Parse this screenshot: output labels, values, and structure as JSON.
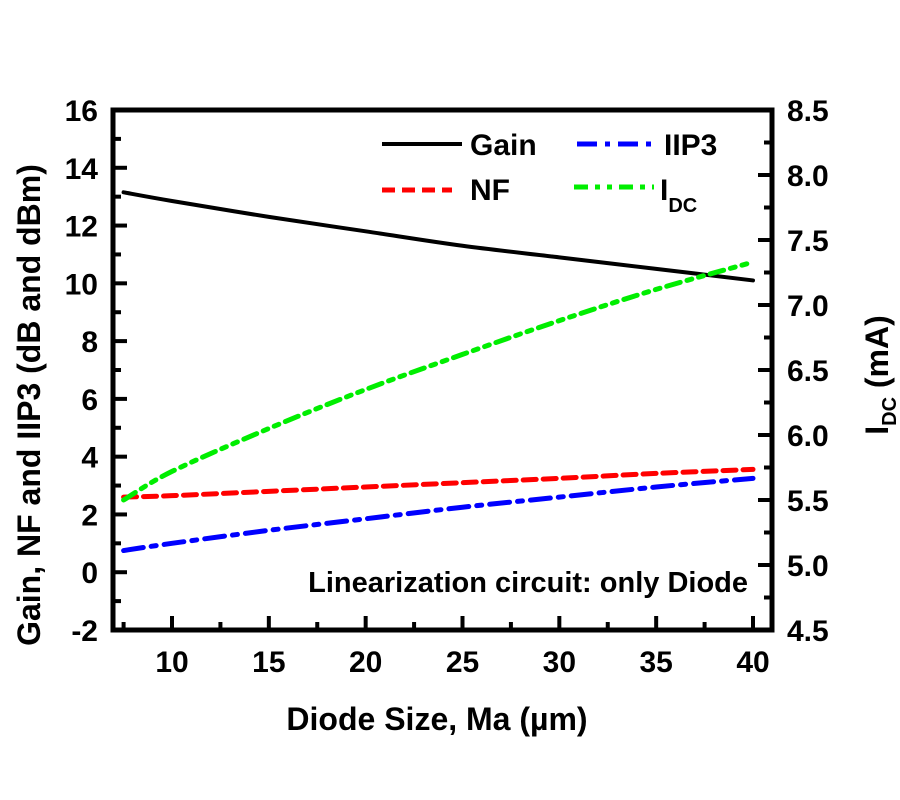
{
  "chart_data": {
    "type": "line",
    "title": "",
    "xlabel": "Diode Size, Ma  (µm)",
    "ylabel": "Gain, NF and IIP3  (dB and dBm)",
    "y2label_main": "I",
    "y2label_sub": "DC",
    "y2label_unit": " (mA)",
    "xlim": [
      7.5,
      41
    ],
    "ylim": [
      -2,
      16
    ],
    "y2lim": [
      4.5,
      8.5
    ],
    "xticks": [
      10,
      15,
      20,
      25,
      30,
      35,
      40
    ],
    "yticks": [
      -2,
      0,
      2,
      4,
      6,
      8,
      10,
      12,
      14,
      16
    ],
    "y2ticks": [
      "4.5",
      "5.0",
      "5.5",
      "6.0",
      "6.5",
      "7.0",
      "7.5",
      "8.0",
      "8.5"
    ],
    "grid": false,
    "legend_position": "top-right",
    "annotation": "Linearization circuit: only Diode",
    "x": [
      7.5,
      10,
      15,
      20,
      25,
      30,
      35,
      40
    ],
    "series": [
      {
        "name": "Gain",
        "axis": "left",
        "color": "#000000",
        "dash": "solid",
        "values": [
          13.15,
          12.85,
          12.3,
          11.8,
          11.3,
          10.9,
          10.5,
          10.1
        ]
      },
      {
        "name": "IIP3",
        "axis": "left",
        "color": "#0000ff",
        "dash": "dashdot",
        "values": [
          0.75,
          1.0,
          1.45,
          1.85,
          2.25,
          2.6,
          2.95,
          3.25
        ]
      },
      {
        "name": "NF",
        "axis": "left",
        "color": "#ff0000",
        "dash": "dash",
        "values": [
          2.6,
          2.65,
          2.8,
          2.95,
          3.1,
          3.25,
          3.42,
          3.56
        ]
      },
      {
        "name": "IDC",
        "name_main": "I",
        "name_sub": "DC",
        "axis": "right",
        "color": "#00ee00",
        "dash": "dashdotdot",
        "values": [
          5.5,
          5.72,
          6.05,
          6.35,
          6.62,
          6.88,
          7.12,
          7.33
        ]
      }
    ],
    "legend": [
      {
        "label": "Gain",
        "series": 0
      },
      {
        "label": "IIP3",
        "series": 1
      },
      {
        "label": "NF",
        "series": 2
      },
      {
        "label": "I",
        "sub": "DC",
        "series": 3
      }
    ]
  }
}
